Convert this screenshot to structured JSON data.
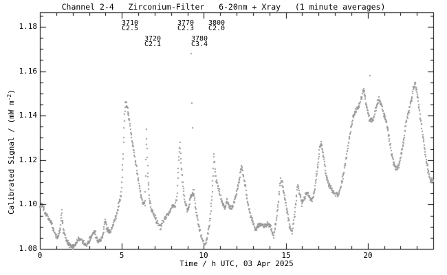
{
  "title": "Channel 2-4   Zirconium-Filter   6-20nm + Xray   (1 minute averages)",
  "axes": {
    "xlabel": "Time / h UTC, 03 Apr 2025",
    "ylabel_prefix": "Calibrated Signal / (mW m",
    "ylabel_sup": "-2",
    "ylabel_suffix": ")"
  },
  "chart_data": {
    "type": "scatter",
    "title": "Channel 2-4   Zirconium-Filter   6-20nm + Xray   (1 minute averages)",
    "xlabel": "Time / h UTC, 03 Apr 2025",
    "ylabel": "Calibrated Signal / (mW m^-2)",
    "xlim": [
      0,
      24
    ],
    "ylim": [
      1.08,
      1.1865
    ],
    "x_minor_step": 1,
    "y_minor_step": 0.005,
    "grid": false,
    "legend": "none",
    "point_color": "#999999",
    "axis_color": "#000000",
    "cadence_minutes": 1,
    "x_tick_labels": [
      {
        "value": 0,
        "label": "0"
      },
      {
        "value": 5,
        "label": "5"
      },
      {
        "value": 10,
        "label": "10"
      },
      {
        "value": 15,
        "label": "15"
      },
      {
        "value": 20,
        "label": "20"
      }
    ],
    "y_tick_labels": [
      {
        "value": 1.08,
        "label": "1.08"
      },
      {
        "value": 1.1,
        "label": "1.10"
      },
      {
        "value": 1.12,
        "label": "1.12"
      },
      {
        "value": 1.14,
        "label": "1.14"
      },
      {
        "value": 1.16,
        "label": "1.16"
      },
      {
        "value": 1.18,
        "label": "1.18"
      }
    ],
    "flare_annotations": [
      {
        "flare_number": "3710",
        "goes_class": "C2.5",
        "t_label": 5.0,
        "row": 0
      },
      {
        "flare_number": "3720",
        "goes_class": "C2.1",
        "t_label": 6.38,
        "row": 1
      },
      {
        "flare_number": "3770",
        "goes_class": "C2.3",
        "t_label": 8.39,
        "row": 0
      },
      {
        "flare_number": "3780",
        "goes_class": "C3.4",
        "t_label": 9.23,
        "row": 1
      },
      {
        "flare_number": "3800",
        "goes_class": "C2.0",
        "t_label": 10.28,
        "row": 0
      }
    ],
    "keypoints": [
      [
        0.0,
        1.099
      ],
      [
        0.15,
        1.1
      ],
      [
        0.3,
        1.097
      ],
      [
        0.5,
        1.094
      ],
      [
        0.7,
        1.092
      ],
      [
        0.9,
        1.087
      ],
      [
        1.1,
        1.085
      ],
      [
        1.25,
        1.089
      ],
      [
        1.33,
        1.097
      ],
      [
        1.42,
        1.089
      ],
      [
        1.6,
        1.084
      ],
      [
        1.8,
        1.082
      ],
      [
        2.0,
        1.081
      ],
      [
        2.2,
        1.082
      ],
      [
        2.4,
        1.085
      ],
      [
        2.6,
        1.0835
      ],
      [
        2.8,
        1.0815
      ],
      [
        3.0,
        1.083
      ],
      [
        3.2,
        1.087
      ],
      [
        3.35,
        1.0875
      ],
      [
        3.55,
        1.0835
      ],
      [
        3.7,
        1.083
      ],
      [
        3.85,
        1.0865
      ],
      [
        3.98,
        1.0935
      ],
      [
        4.08,
        1.0885
      ],
      [
        4.25,
        1.0875
      ],
      [
        4.4,
        1.0895
      ],
      [
        4.55,
        1.0925
      ],
      [
        4.7,
        1.096
      ],
      [
        4.85,
        1.101
      ],
      [
        4.95,
        1.104
      ],
      [
        5.05,
        1.117
      ],
      [
        5.15,
        1.138
      ],
      [
        5.22,
        1.146
      ],
      [
        5.32,
        1.1445
      ],
      [
        5.45,
        1.139
      ],
      [
        5.6,
        1.13
      ],
      [
        5.8,
        1.121
      ],
      [
        6.0,
        1.1115
      ],
      [
        6.15,
        1.105
      ],
      [
        6.3,
        1.0995
      ],
      [
        6.42,
        1.101
      ],
      [
        6.5,
        1.134
      ],
      [
        6.58,
        1.114
      ],
      [
        6.68,
        1.1025
      ],
      [
        6.8,
        1.0975
      ],
      [
        7.0,
        1.095
      ],
      [
        7.2,
        1.0915
      ],
      [
        7.35,
        1.0895
      ],
      [
        7.5,
        1.0925
      ],
      [
        7.7,
        1.095
      ],
      [
        7.9,
        1.0965
      ],
      [
        8.1,
        1.1
      ],
      [
        8.25,
        1.099
      ],
      [
        8.38,
        1.105
      ],
      [
        8.48,
        1.122
      ],
      [
        8.55,
        1.128
      ],
      [
        8.63,
        1.117
      ],
      [
        8.72,
        1.109
      ],
      [
        8.85,
        1.101
      ],
      [
        9.0,
        1.0975
      ],
      [
        9.1,
        1.0985
      ],
      [
        9.18,
        1.103
      ],
      [
        9.38,
        1.106
      ],
      [
        9.5,
        1.098
      ],
      [
        9.65,
        1.0925
      ],
      [
        9.8,
        1.087
      ],
      [
        9.95,
        1.0835
      ],
      [
        10.1,
        1.082
      ],
      [
        10.25,
        1.0865
      ],
      [
        10.4,
        1.094
      ],
      [
        10.52,
        1.106
      ],
      [
        10.62,
        1.1225
      ],
      [
        10.72,
        1.1125
      ],
      [
        10.85,
        1.1085
      ],
      [
        11.0,
        1.1045
      ],
      [
        11.15,
        1.1
      ],
      [
        11.3,
        1.0985
      ],
      [
        11.42,
        1.1025
      ],
      [
        11.55,
        1.099
      ],
      [
        11.7,
        1.098
      ],
      [
        11.85,
        1.101
      ],
      [
        12.0,
        1.105
      ],
      [
        12.15,
        1.11
      ],
      [
        12.3,
        1.118
      ],
      [
        12.42,
        1.1125
      ],
      [
        12.55,
        1.1075
      ],
      [
        12.7,
        1.1
      ],
      [
        12.85,
        1.095
      ],
      [
        13.0,
        1.0925
      ],
      [
        13.15,
        1.0885
      ],
      [
        13.3,
        1.0905
      ],
      [
        13.5,
        1.0915
      ],
      [
        13.7,
        1.0905
      ],
      [
        13.9,
        1.0915
      ],
      [
        14.1,
        1.0895
      ],
      [
        14.25,
        1.086
      ],
      [
        14.4,
        1.091
      ],
      [
        14.55,
        1.101
      ],
      [
        14.68,
        1.1115
      ],
      [
        14.8,
        1.109
      ],
      [
        14.95,
        1.103
      ],
      [
        15.1,
        1.0965
      ],
      [
        15.25,
        1.0895
      ],
      [
        15.4,
        1.0875
      ],
      [
        15.55,
        1.096
      ],
      [
        15.72,
        1.1085
      ],
      [
        15.85,
        1.105
      ],
      [
        16.0,
        1.1005
      ],
      [
        16.15,
        1.103
      ],
      [
        16.3,
        1.1055
      ],
      [
        16.45,
        1.1035
      ],
      [
        16.6,
        1.1015
      ],
      [
        16.75,
        1.106
      ],
      [
        16.9,
        1.114
      ],
      [
        17.05,
        1.124
      ],
      [
        17.15,
        1.128
      ],
      [
        17.3,
        1.122
      ],
      [
        17.45,
        1.114
      ],
      [
        17.6,
        1.1095
      ],
      [
        17.75,
        1.1075
      ],
      [
        17.9,
        1.1055
      ],
      [
        18.05,
        1.1045
      ],
      [
        18.2,
        1.1045
      ],
      [
        18.35,
        1.108
      ],
      [
        18.5,
        1.113
      ],
      [
        18.65,
        1.119
      ],
      [
        18.8,
        1.126
      ],
      [
        18.95,
        1.133
      ],
      [
        19.1,
        1.139
      ],
      [
        19.25,
        1.142
      ],
      [
        19.4,
        1.1435
      ],
      [
        19.55,
        1.146
      ],
      [
        19.7,
        1.151
      ],
      [
        19.8,
        1.1505
      ],
      [
        19.95,
        1.1435
      ],
      [
        20.1,
        1.1385
      ],
      [
        20.25,
        1.1375
      ],
      [
        20.4,
        1.14
      ],
      [
        20.55,
        1.1445
      ],
      [
        20.7,
        1.1475
      ],
      [
        20.85,
        1.1445
      ],
      [
        21.0,
        1.14
      ],
      [
        21.15,
        1.1375
      ],
      [
        21.3,
        1.131
      ],
      [
        21.45,
        1.1225
      ],
      [
        21.6,
        1.1185
      ],
      [
        21.75,
        1.116
      ],
      [
        21.9,
        1.1175
      ],
      [
        22.05,
        1.1225
      ],
      [
        22.2,
        1.129
      ],
      [
        22.35,
        1.1375
      ],
      [
        22.5,
        1.142
      ],
      [
        22.65,
        1.1465
      ],
      [
        22.8,
        1.1525
      ],
      [
        22.9,
        1.1545
      ],
      [
        23.0,
        1.151
      ],
      [
        23.1,
        1.1455
      ],
      [
        23.25,
        1.137
      ],
      [
        23.4,
        1.1295
      ],
      [
        23.55,
        1.1215
      ],
      [
        23.7,
        1.1145
      ],
      [
        23.85,
        1.1105
      ],
      [
        23.98,
        1.111
      ]
    ],
    "outlier_points": [
      [
        9.22,
        1.168
      ],
      [
        9.26,
        1.1455
      ],
      [
        9.3,
        1.1345
      ],
      [
        20.12,
        1.158
      ]
    ]
  }
}
